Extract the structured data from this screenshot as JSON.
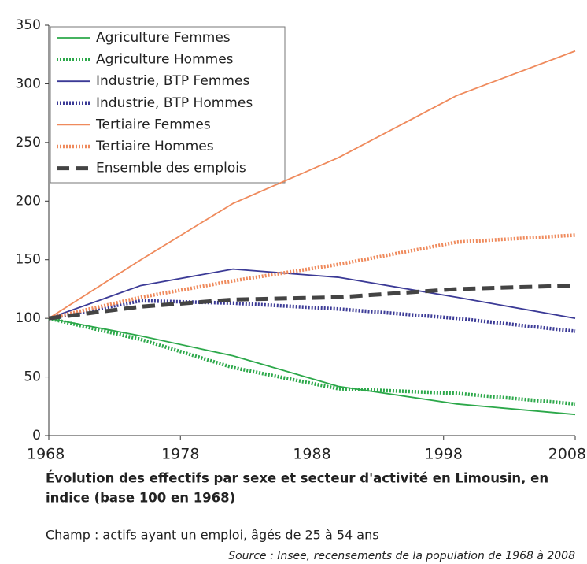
{
  "chart_data": {
    "type": "line",
    "caption": [
      "Évolution des effectifs par sexe et secteur d'activité en Limousin, en",
      "indice (base 100 en 1968)"
    ],
    "note": "Champ : actifs ayant un emploi, âgés de 25 à 54 ans",
    "source": "Source : Insee, recensements de la population de 1968 à 2008",
    "x": [
      1968,
      1975,
      1982,
      1990,
      1999,
      2008
    ],
    "series": [
      {
        "name": "Agriculture Femmes",
        "color": "#2ca84a",
        "style": "solid",
        "values": [
          100,
          85,
          68,
          42,
          27,
          18
        ]
      },
      {
        "name": "Agriculture Hommes",
        "color": "#2ca84a",
        "style": "dotted",
        "values": [
          100,
          82,
          58,
          40,
          36,
          27
        ]
      },
      {
        "name": "Industrie, BTP Femmes",
        "color": "#3b3a96",
        "style": "solid",
        "values": [
          100,
          128,
          142,
          135,
          118,
          100
        ]
      },
      {
        "name": "Industrie, BTP Hommes",
        "color": "#3b3a96",
        "style": "dotted",
        "values": [
          100,
          115,
          113,
          108,
          100,
          89
        ]
      },
      {
        "name": "Tertiaire Femmes",
        "color": "#ef8a5c",
        "style": "solid",
        "values": [
          100,
          150,
          198,
          237,
          290,
          328
        ]
      },
      {
        "name": "Tertiaire Hommes",
        "color": "#ef8a5c",
        "style": "dotted",
        "values": [
          100,
          118,
          132,
          146,
          165,
          171
        ]
      },
      {
        "name": "Ensemble des emplois",
        "color": "#444444",
        "style": "dashed",
        "values": [
          100,
          110,
          116,
          118,
          125,
          128
        ]
      }
    ],
    "xlim": [
      1968,
      2008
    ],
    "xticks": [
      1968,
      1978,
      1988,
      1998,
      2008
    ],
    "ylim": [
      0,
      350
    ],
    "yticks": [
      0,
      50,
      100,
      150,
      200,
      250,
      300,
      350
    ],
    "legend": "upper left"
  }
}
